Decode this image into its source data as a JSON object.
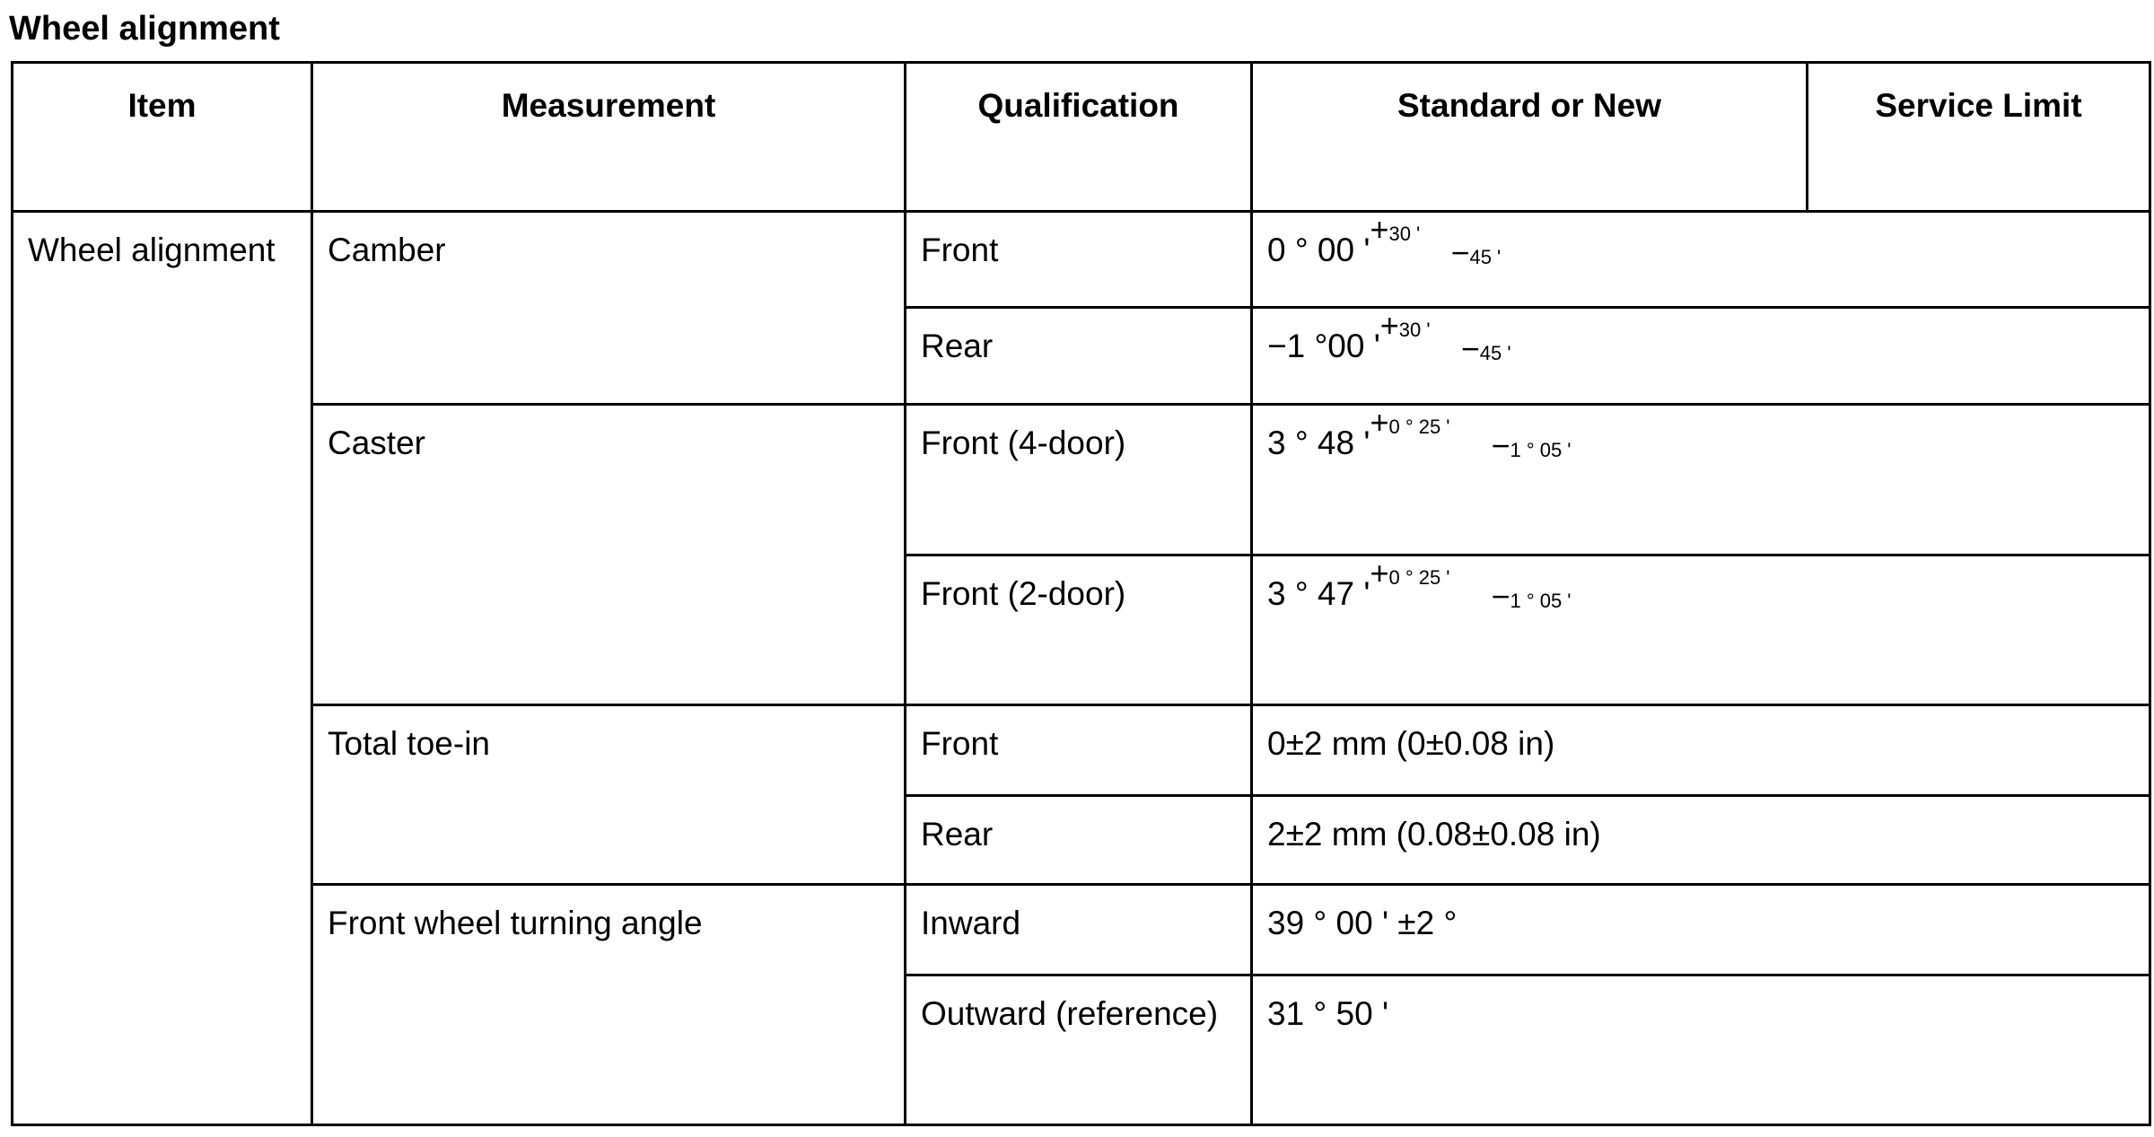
{
  "title": "Wheel alignment",
  "headers": {
    "item": "Item",
    "measurement": "Measurement",
    "qualification": "Qualification",
    "standard": "Standard or New",
    "service_limit": "Service Limit"
  },
  "item": "Wheel alignment",
  "rows": [
    {
      "measurement": "Camber",
      "qualification": "Front",
      "value": "0 ° 00 '",
      "plus": "30 '",
      "minus": "45 '"
    },
    {
      "qualification": "Rear",
      "value": "−1 °00 '",
      "plus": "30 '",
      "minus": "45 '"
    },
    {
      "measurement": "Caster",
      "qualification": "Front (4-door)",
      "value": "3 ° 48 '",
      "plus": "0 ° 25 '",
      "minus": "1 ° 05 '"
    },
    {
      "qualification": "Front (2-door)",
      "value": "3 ° 47 '",
      "plus": "0 ° 25 '",
      "minus": "1 ° 05 '"
    },
    {
      "measurement": "Total toe-in",
      "qualification": "Front",
      "value": "0±2 mm (0±0.08 in)"
    },
    {
      "qualification": "Rear",
      "value": "2±2 mm (0.08±0.08 in)"
    },
    {
      "measurement": "Front wheel turning angle",
      "qualification": "Inward",
      "value": "39 ° 00 ' ±2 °"
    },
    {
      "qualification": "Outward (reference)",
      "value": "31 ° 50 '"
    }
  ]
}
